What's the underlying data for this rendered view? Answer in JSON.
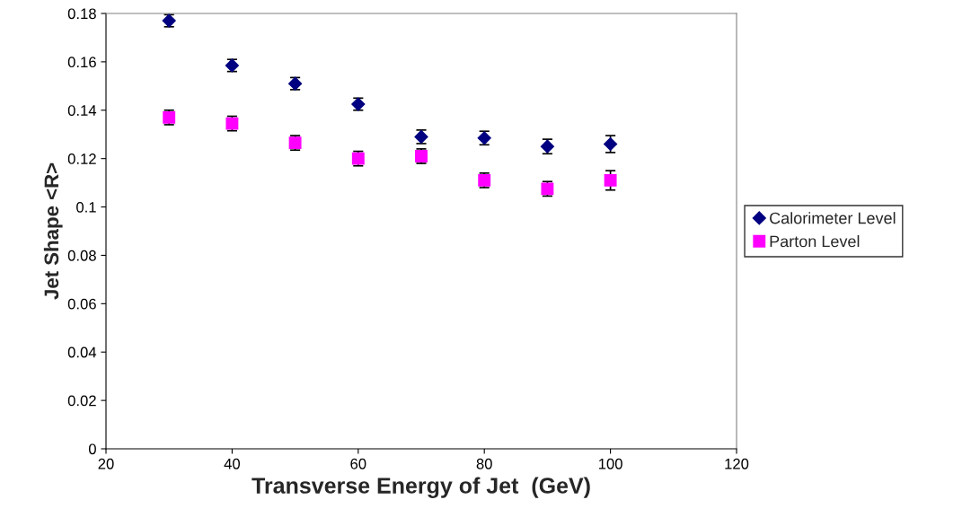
{
  "chart_data": {
    "type": "scatter",
    "xlabel": "Transverse Energy of Jet  (GeV)",
    "ylabel": "Jet Shape <R>",
    "x": [
      30,
      40,
      50,
      60,
      70,
      80,
      90,
      100
    ],
    "series": [
      {
        "name": "Calorimeter Level",
        "color": "#000080",
        "marker": "diamond",
        "values": [
          0.177,
          0.1585,
          0.151,
          0.1425,
          0.129,
          0.1285,
          0.125,
          0.126
        ],
        "errors": [
          0.0025,
          0.0025,
          0.0025,
          0.0025,
          0.0028,
          0.0028,
          0.003,
          0.0035
        ]
      },
      {
        "name": "Parton Level",
        "color": "#ff00ff",
        "marker": "square",
        "values": [
          0.137,
          0.1345,
          0.1265,
          0.12,
          0.121,
          0.111,
          0.1075,
          0.111
        ],
        "errors": [
          0.003,
          0.003,
          0.003,
          0.003,
          0.003,
          0.003,
          0.003,
          0.004
        ]
      }
    ],
    "xlim": [
      20,
      120
    ],
    "xticks": [
      20,
      40,
      60,
      80,
      100,
      120
    ],
    "ylim": [
      0,
      0.18
    ],
    "yticks": [
      0,
      0.02,
      0.04,
      0.06,
      0.08,
      0.1,
      0.12,
      0.14,
      0.16,
      0.18
    ],
    "grid": false,
    "legend": "right"
  }
}
